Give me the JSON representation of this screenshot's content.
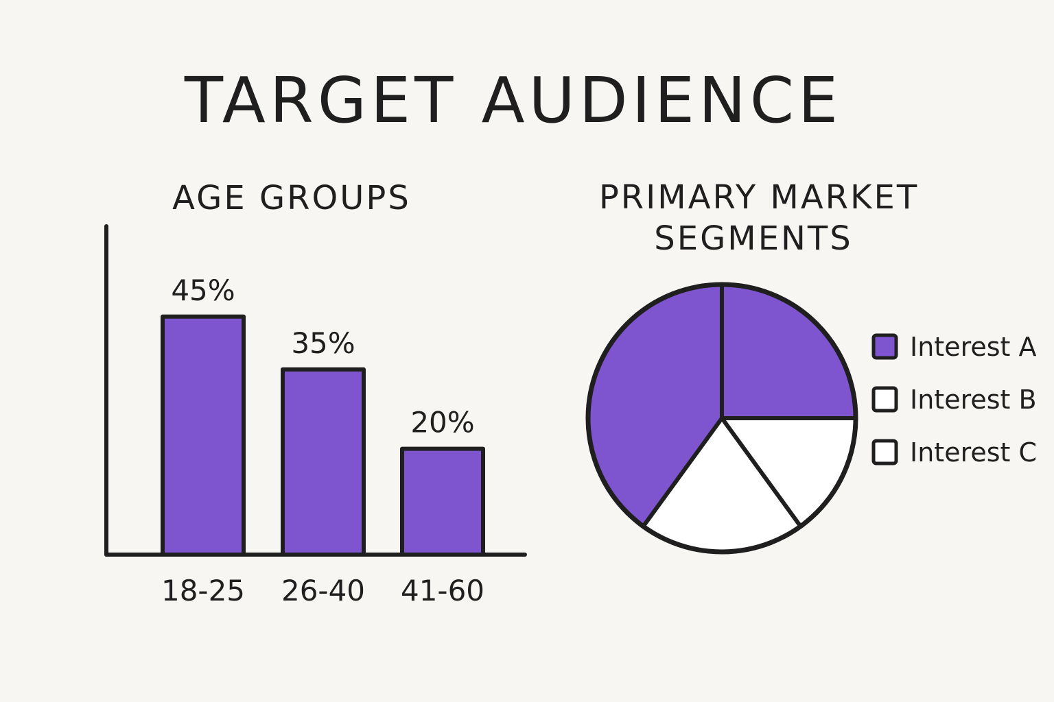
{
  "title": "TARGET AUDIENCE",
  "colors": {
    "background": "#f8f6f3",
    "accent": "#7e55cf",
    "ink": "#1f1f1f",
    "empty": "#ffffff"
  },
  "chart_data": [
    {
      "type": "bar",
      "title": "AGE GROUPS",
      "xlabel": "",
      "ylabel": "",
      "ylim": [
        0,
        60
      ],
      "categories": [
        "18-25",
        "26-40",
        "41-60"
      ],
      "values": [
        45,
        35,
        20
      ],
      "data_labels": [
        "45%",
        "35%",
        "20%"
      ],
      "grid": false
    },
    {
      "type": "pie",
      "title_lines": [
        "PRIMARY MARKET",
        "SEGMENTS"
      ],
      "legend_position": "right",
      "slices": [
        {
          "label": "Interest A",
          "value": 25,
          "filled": true
        },
        {
          "label": "Interest B",
          "value": 15,
          "filled": false
        },
        {
          "label": "Interest C",
          "value": 20,
          "filled": false
        },
        {
          "label": "Interest A",
          "value": 40,
          "filled": true
        }
      ],
      "legend": [
        {
          "label": "Interest A",
          "filled": true
        },
        {
          "label": "Interest B",
          "filled": false
        },
        {
          "label": "Interest C",
          "filled": false
        }
      ]
    }
  ]
}
